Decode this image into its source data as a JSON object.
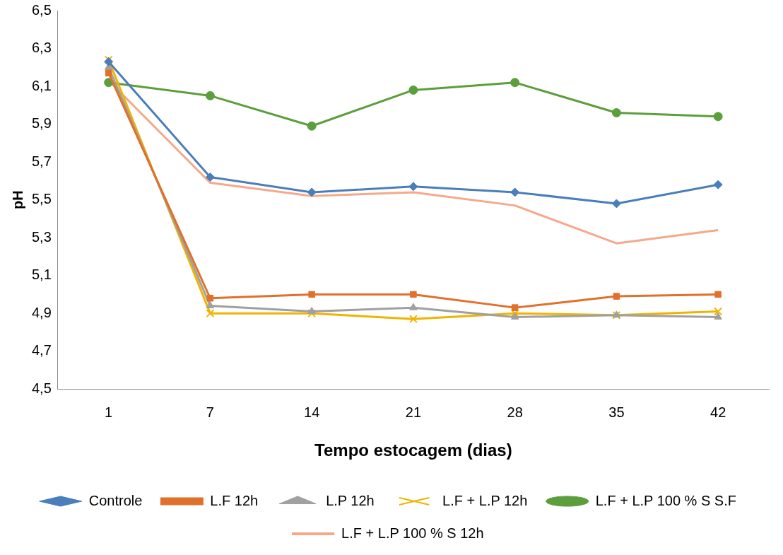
{
  "chart_data": {
    "type": "line",
    "xlabel": "Tempo estocagem (dias)",
    "ylabel": "pH",
    "categories": [
      "1",
      "7",
      "14",
      "21",
      "28",
      "35",
      "42"
    ],
    "ylim": [
      4.5,
      6.5
    ],
    "yticks": [
      {
        "value": 4.5,
        "label": "4,5"
      },
      {
        "value": 4.7,
        "label": "4,7"
      },
      {
        "value": 4.9,
        "label": "4,9"
      },
      {
        "value": 5.1,
        "label": "5,1"
      },
      {
        "value": 5.3,
        "label": "5,3"
      },
      {
        "value": 5.5,
        "label": "5,5"
      },
      {
        "value": 5.7,
        "label": "5,7"
      },
      {
        "value": 5.9,
        "label": "5,9"
      },
      {
        "value": 6.1,
        "label": "6,1"
      },
      {
        "value": 6.3,
        "label": "6,3"
      },
      {
        "value": 6.5,
        "label": "6,5"
      }
    ],
    "grid": false,
    "legend": "bottom",
    "series": [
      {
        "name": "Controle",
        "color": "#4a7ebb",
        "marker": "diamond",
        "values": [
          6.23,
          5.62,
          5.54,
          5.57,
          5.54,
          5.48,
          5.58
        ]
      },
      {
        "name": "L.F 12h",
        "color": "#e0702a",
        "marker": "square",
        "values": [
          6.17,
          4.98,
          5.0,
          5.0,
          4.93,
          4.99,
          5.0
        ]
      },
      {
        "name": "L.P 12h",
        "color": "#a0a0a0",
        "marker": "triangle",
        "values": [
          6.2,
          4.94,
          4.91,
          4.93,
          4.88,
          4.89,
          4.88
        ]
      },
      {
        "name": "L.F + L.P 12h",
        "color": "#f0b400",
        "marker": "cross",
        "values": [
          6.24,
          4.9,
          4.9,
          4.87,
          4.9,
          4.89,
          4.91
        ]
      },
      {
        "name": "L.F + L.P 100 % S S.F",
        "color": "#5c9e3c",
        "marker": "circle",
        "values": [
          6.12,
          6.05,
          5.89,
          6.08,
          6.12,
          5.96,
          5.94
        ]
      },
      {
        "name": "L.F + L.P 100 % S 12h",
        "color": "#f4a98a",
        "marker": "none",
        "values": [
          6.13,
          5.59,
          5.52,
          5.54,
          5.47,
          5.27,
          5.34
        ]
      }
    ]
  }
}
